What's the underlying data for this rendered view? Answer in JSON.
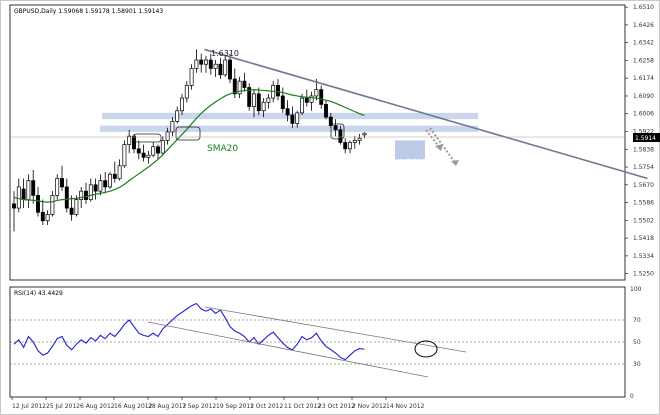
{
  "header": {
    "symbol_line": "GBPUSD,Daily  1.59068 1.59178 1.58901 1.59143"
  },
  "rsi_panel": {
    "title": "RSI(14) 43.4429",
    "levels": [
      70,
      50,
      30
    ],
    "top_label": "100",
    "bottom_label": "0"
  },
  "price_axis": {
    "ticks": [
      "1.6510",
      "1.6426",
      "1.6342",
      "1.6258",
      "1.6174",
      "1.6090",
      "1.6006",
      "1.5922",
      "1.5838",
      "1.5754",
      "1.5670",
      "1.5586",
      "1.5502",
      "1.5418",
      "1.5334",
      "1.5250"
    ],
    "current_price": "1.5914",
    "ymin": 1.522,
    "ymax": 1.652
  },
  "date_axis": {
    "labels": [
      "12 Jul 2012",
      "25 Jul 2012",
      "6 Aug 2012",
      "16 Aug 2012",
      "28 Aug 2012",
      "7 Sep 2012",
      "19 Sep 2012",
      "1 Oct 2012",
      "11 Oct 2012",
      "23 Oct 2012",
      "2 Nov 2012",
      "14 Nov 2012"
    ]
  },
  "annotations": {
    "high_label": "1.6310",
    "low_label": "1.5819",
    "sma_label": "SMA20"
  },
  "colors": {
    "bull_candle": "#ffffff",
    "bear_candle": "#000000",
    "sma": "#1a7f1a",
    "rsi": "#1f1fcf",
    "trendline": "#6b7a8f",
    "support_band": "#b8c8e6",
    "forecast_arrow": "#9a9a9a"
  },
  "chart_data": {
    "type": "candlestick",
    "ohlc": [
      {
        "o": 1.558,
        "h": 1.564,
        "l": 1.545,
        "c": 1.556
      },
      {
        "o": 1.556,
        "h": 1.57,
        "l": 1.554,
        "c": 1.566
      },
      {
        "o": 1.565,
        "h": 1.57,
        "l": 1.556,
        "c": 1.56
      },
      {
        "o": 1.56,
        "h": 1.572,
        "l": 1.556,
        "c": 1.569
      },
      {
        "o": 1.569,
        "h": 1.574,
        "l": 1.558,
        "c": 1.562
      },
      {
        "o": 1.562,
        "h": 1.566,
        "l": 1.552,
        "c": 1.554
      },
      {
        "o": 1.554,
        "h": 1.56,
        "l": 1.548,
        "c": 1.55
      },
      {
        "o": 1.55,
        "h": 1.555,
        "l": 1.548,
        "c": 1.553
      },
      {
        "o": 1.553,
        "h": 1.564,
        "l": 1.552,
        "c": 1.562
      },
      {
        "o": 1.562,
        "h": 1.572,
        "l": 1.56,
        "c": 1.57
      },
      {
        "o": 1.57,
        "h": 1.576,
        "l": 1.564,
        "c": 1.566
      },
      {
        "o": 1.566,
        "h": 1.57,
        "l": 1.554,
        "c": 1.556
      },
      {
        "o": 1.556,
        "h": 1.562,
        "l": 1.55,
        "c": 1.553
      },
      {
        "o": 1.553,
        "h": 1.562,
        "l": 1.552,
        "c": 1.56
      },
      {
        "o": 1.56,
        "h": 1.566,
        "l": 1.556,
        "c": 1.564
      },
      {
        "o": 1.564,
        "h": 1.568,
        "l": 1.558,
        "c": 1.56
      },
      {
        "o": 1.56,
        "h": 1.57,
        "l": 1.559,
        "c": 1.567
      },
      {
        "o": 1.567,
        "h": 1.57,
        "l": 1.56,
        "c": 1.564
      },
      {
        "o": 1.564,
        "h": 1.572,
        "l": 1.562,
        "c": 1.569
      },
      {
        "o": 1.569,
        "h": 1.573,
        "l": 1.563,
        "c": 1.566
      },
      {
        "o": 1.566,
        "h": 1.573,
        "l": 1.565,
        "c": 1.572
      },
      {
        "o": 1.572,
        "h": 1.578,
        "l": 1.568,
        "c": 1.57
      },
      {
        "o": 1.57,
        "h": 1.579,
        "l": 1.569,
        "c": 1.576
      },
      {
        "o": 1.576,
        "h": 1.588,
        "l": 1.575,
        "c": 1.586
      },
      {
        "o": 1.586,
        "h": 1.593,
        "l": 1.582,
        "c": 1.59
      },
      {
        "o": 1.59,
        "h": 1.591,
        "l": 1.582,
        "c": 1.584
      },
      {
        "o": 1.584,
        "h": 1.588,
        "l": 1.579,
        "c": 1.582
      },
      {
        "o": 1.582,
        "h": 1.586,
        "l": 1.578,
        "c": 1.58
      },
      {
        "o": 1.58,
        "h": 1.583,
        "l": 1.577,
        "c": 1.581
      },
      {
        "o": 1.581,
        "h": 1.587,
        "l": 1.58,
        "c": 1.585
      },
      {
        "o": 1.585,
        "h": 1.586,
        "l": 1.579,
        "c": 1.582
      },
      {
        "o": 1.582,
        "h": 1.59,
        "l": 1.581,
        "c": 1.588
      },
      {
        "o": 1.588,
        "h": 1.594,
        "l": 1.586,
        "c": 1.592
      },
      {
        "o": 1.592,
        "h": 1.599,
        "l": 1.59,
        "c": 1.597
      },
      {
        "o": 1.597,
        "h": 1.604,
        "l": 1.596,
        "c": 1.602
      },
      {
        "o": 1.602,
        "h": 1.61,
        "l": 1.6,
        "c": 1.608
      },
      {
        "o": 1.608,
        "h": 1.616,
        "l": 1.606,
        "c": 1.614
      },
      {
        "o": 1.614,
        "h": 1.624,
        "l": 1.612,
        "c": 1.622
      },
      {
        "o": 1.622,
        "h": 1.631,
        "l": 1.62,
        "c": 1.626
      },
      {
        "o": 1.626,
        "h": 1.629,
        "l": 1.62,
        "c": 1.624
      },
      {
        "o": 1.624,
        "h": 1.628,
        "l": 1.62,
        "c": 1.626
      },
      {
        "o": 1.626,
        "h": 1.629,
        "l": 1.619,
        "c": 1.622
      },
      {
        "o": 1.622,
        "h": 1.626,
        "l": 1.618,
        "c": 1.624
      },
      {
        "o": 1.624,
        "h": 1.627,
        "l": 1.617,
        "c": 1.619
      },
      {
        "o": 1.619,
        "h": 1.628,
        "l": 1.618,
        "c": 1.626
      },
      {
        "o": 1.626,
        "h": 1.629,
        "l": 1.615,
        "c": 1.617
      },
      {
        "o": 1.617,
        "h": 1.622,
        "l": 1.608,
        "c": 1.61
      },
      {
        "o": 1.61,
        "h": 1.618,
        "l": 1.608,
        "c": 1.616
      },
      {
        "o": 1.616,
        "h": 1.62,
        "l": 1.611,
        "c": 1.613
      },
      {
        "o": 1.613,
        "h": 1.615,
        "l": 1.602,
        "c": 1.604
      },
      {
        "o": 1.604,
        "h": 1.612,
        "l": 1.599,
        "c": 1.61
      },
      {
        "o": 1.61,
        "h": 1.613,
        "l": 1.6,
        "c": 1.602
      },
      {
        "o": 1.602,
        "h": 1.608,
        "l": 1.599,
        "c": 1.606
      },
      {
        "o": 1.606,
        "h": 1.61,
        "l": 1.603,
        "c": 1.608
      },
      {
        "o": 1.608,
        "h": 1.616,
        "l": 1.606,
        "c": 1.614
      },
      {
        "o": 1.614,
        "h": 1.617,
        "l": 1.607,
        "c": 1.609
      },
      {
        "o": 1.609,
        "h": 1.613,
        "l": 1.601,
        "c": 1.603
      },
      {
        "o": 1.603,
        "h": 1.607,
        "l": 1.597,
        "c": 1.6
      },
      {
        "o": 1.6,
        "h": 1.604,
        "l": 1.594,
        "c": 1.596
      },
      {
        "o": 1.596,
        "h": 1.602,
        "l": 1.594,
        "c": 1.601
      },
      {
        "o": 1.601,
        "h": 1.61,
        "l": 1.6,
        "c": 1.608
      },
      {
        "o": 1.608,
        "h": 1.612,
        "l": 1.604,
        "c": 1.606
      },
      {
        "o": 1.606,
        "h": 1.611,
        "l": 1.602,
        "c": 1.609
      },
      {
        "o": 1.609,
        "h": 1.617,
        "l": 1.607,
        "c": 1.612
      },
      {
        "o": 1.612,
        "h": 1.614,
        "l": 1.603,
        "c": 1.605
      },
      {
        "o": 1.605,
        "h": 1.607,
        "l": 1.598,
        "c": 1.599
      },
      {
        "o": 1.599,
        "h": 1.601,
        "l": 1.594,
        "c": 1.595
      },
      {
        "o": 1.595,
        "h": 1.598,
        "l": 1.59,
        "c": 1.593
      },
      {
        "o": 1.593,
        "h": 1.595,
        "l": 1.586,
        "c": 1.587
      },
      {
        "o": 1.587,
        "h": 1.589,
        "l": 1.5819,
        "c": 1.584
      },
      {
        "o": 1.584,
        "h": 1.588,
        "l": 1.582,
        "c": 1.587
      },
      {
        "o": 1.587,
        "h": 1.59,
        "l": 1.584,
        "c": 1.588
      },
      {
        "o": 1.588,
        "h": 1.591,
        "l": 1.586,
        "c": 1.589
      },
      {
        "o": 1.5906,
        "h": 1.5918,
        "l": 1.589,
        "c": 1.5914
      }
    ],
    "rsi": [
      48,
      52,
      45,
      55,
      50,
      42,
      38,
      40,
      46,
      53,
      55,
      47,
      43,
      48,
      52,
      49,
      54,
      51,
      56,
      53,
      58,
      55,
      60,
      66,
      70,
      64,
      58,
      56,
      55,
      58,
      55,
      62,
      66,
      70,
      74,
      77,
      80,
      83,
      85,
      80,
      78,
      80,
      76,
      79,
      72,
      64,
      60,
      58,
      55,
      50,
      54,
      48,
      52,
      56,
      59,
      54,
      49,
      45,
      43,
      48,
      55,
      52,
      54,
      58,
      51,
      46,
      43,
      40,
      36,
      34,
      38,
      42,
      44,
      43.4
    ],
    "sma20": [
      1.561,
      1.5605,
      1.56,
      1.5598,
      1.5597,
      1.5594,
      1.559,
      1.5588,
      1.559,
      1.5596,
      1.56,
      1.5602,
      1.5604,
      1.5606,
      1.561,
      1.5614,
      1.562,
      1.5625,
      1.563,
      1.5634,
      1.564,
      1.5648,
      1.5658,
      1.5672,
      1.569,
      1.5706,
      1.5722,
      1.5738,
      1.5754,
      1.5772,
      1.579,
      1.5812,
      1.5836,
      1.586,
      1.5884,
      1.5908,
      1.5932,
      1.5958,
      1.5984,
      1.6008,
      1.6028,
      1.6046,
      1.6062,
      1.6076,
      1.609,
      1.61,
      1.6106,
      1.6112,
      1.6116,
      1.6118,
      1.612,
      1.6118,
      1.6116,
      1.6114,
      1.6112,
      1.611,
      1.6106,
      1.61,
      1.6094,
      1.609,
      1.6086,
      1.6084,
      1.6082,
      1.608,
      1.6076,
      1.607,
      1.6064,
      1.6056,
      1.6046,
      1.6036,
      1.6026,
      1.6016,
      1.6006,
      1.5998
    ],
    "trendline": [
      {
        "i": 38,
        "p": 1.631
      },
      {
        "i": 132,
        "p": 1.57
      }
    ],
    "support_band": [
      1.592,
      1.595
    ],
    "resistance_band": [
      1.598,
      1.601
    ]
  }
}
